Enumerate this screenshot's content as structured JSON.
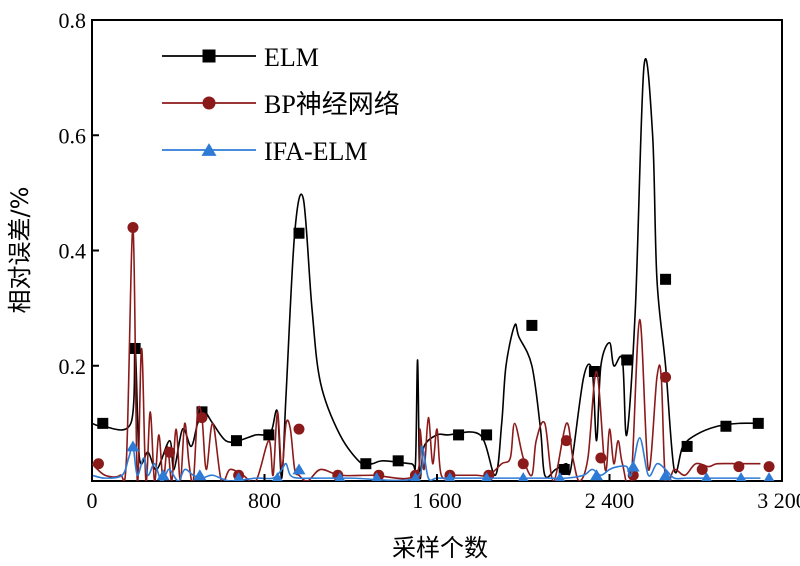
{
  "chart_data": {
    "type": "line",
    "xlabel": "采样个数",
    "ylabel": "相对误差/%",
    "xlim": [
      0,
      3200
    ],
    "ylim": [
      0,
      0.8
    ],
    "x_ticks": [
      0,
      800,
      1600,
      2400,
      3200
    ],
    "x_tick_labels": [
      "0",
      "800",
      "1 600",
      "2 400",
      "3 200"
    ],
    "y_ticks": [
      0.2,
      0.4,
      0.6,
      0.8
    ],
    "y_tick_labels": [
      "0.2",
      "0.4",
      "0.6",
      "0.8"
    ],
    "legend_position": "top-left",
    "series": [
      {
        "name": "ELM",
        "color": "#000000",
        "marker": "square",
        "x": [
          0,
          50,
          180,
          200,
          220,
          260,
          300,
          360,
          380,
          420,
          460,
          490,
          520,
          560,
          620,
          680,
          760,
          810,
          835,
          860,
          880,
          900,
          940,
          980,
          1020,
          1060,
          1150,
          1250,
          1300,
          1350,
          1480,
          1500,
          1510,
          1520,
          1540,
          1600,
          1650,
          1800,
          1870,
          1900,
          1920,
          1960,
          1980,
          2040,
          2080,
          2100,
          2150,
          2200,
          2220,
          2280,
          2320,
          2340,
          2360,
          2400,
          2420,
          2460,
          2480,
          2520,
          2560,
          2600,
          2620,
          2660,
          2700,
          2740,
          2800,
          2900,
          3000,
          3100
        ],
        "y": [
          0.1,
          0.095,
          0.1,
          0.23,
          0.04,
          0.05,
          0.02,
          0.07,
          0.02,
          0.09,
          0.06,
          0.1,
          0.12,
          0.1,
          0.07,
          0.07,
          0.08,
          0.08,
          0.09,
          0.12,
          0.005,
          0.15,
          0.43,
          0.49,
          0.3,
          0.17,
          0.08,
          0.03,
          0.03,
          0.035,
          0.03,
          0.03,
          0.21,
          0.01,
          0.06,
          0.08,
          0.08,
          0.08,
          0.01,
          0.1,
          0.2,
          0.27,
          0.25,
          0.2,
          0.09,
          0.01,
          0.02,
          0.03,
          0.02,
          0.18,
          0.19,
          0.07,
          0.2,
          0.24,
          0.2,
          0.21,
          0.08,
          0.3,
          0.72,
          0.6,
          0.35,
          0.2,
          0.02,
          0.06,
          0.08,
          0.095,
          0.1,
          0.1
        ],
        "markers_x": [
          50,
          200,
          510,
          670,
          820,
          960,
          1270,
          1420,
          1700,
          1830,
          2040,
          2190,
          2330,
          2480,
          2660,
          2760,
          2940,
          3090
        ],
        "markers_y": [
          0.1,
          0.23,
          0.12,
          0.07,
          0.08,
          0.43,
          0.03,
          0.035,
          0.08,
          0.08,
          0.27,
          0.02,
          0.19,
          0.21,
          0.35,
          0.06,
          0.095,
          0.1
        ]
      },
      {
        "name": "BP神经网络",
        "color": "#8b1a1a",
        "marker": "circle",
        "x": [
          0,
          60,
          130,
          160,
          190,
          210,
          230,
          250,
          270,
          290,
          310,
          330,
          350,
          370,
          390,
          410,
          430,
          450,
          470,
          490,
          510,
          530,
          560,
          600,
          640,
          700,
          760,
          820,
          840,
          860,
          880,
          900,
          920,
          940,
          960,
          1000,
          1060,
          1150,
          1300,
          1500,
          1520,
          1540,
          1560,
          1580,
          1600,
          1620,
          1680,
          1780,
          1840,
          1900,
          1940,
          1960,
          2000,
          2040,
          2060,
          2100,
          2140,
          2200,
          2230,
          2260,
          2300,
          2340,
          2380,
          2400,
          2420,
          2440,
          2460,
          2500,
          2540,
          2580,
          2620,
          2640,
          2660,
          2700,
          2750,
          2800,
          2860,
          2900,
          3000,
          3100
        ],
        "y": [
          0.03,
          0.01,
          0.01,
          0.04,
          0.44,
          0.0,
          0.23,
          0.0,
          0.12,
          0.0,
          0.08,
          0.0,
          0.06,
          0.0,
          0.09,
          0.0,
          0.1,
          0.03,
          0.0,
          0.12,
          0.11,
          0.02,
          0.1,
          0.0,
          0.02,
          0.01,
          0.0,
          0.07,
          0.01,
          0.12,
          0.02,
          0.1,
          0.09,
          0.02,
          0.01,
          0.0,
          0.02,
          0.01,
          0.01,
          0.01,
          0.09,
          0.02,
          0.11,
          0.03,
          0.09,
          0.01,
          0.01,
          0.01,
          0.01,
          0.03,
          0.04,
          0.1,
          0.04,
          0.01,
          0.07,
          0.1,
          0.0,
          0.1,
          0.04,
          0.0,
          0.04,
          0.19,
          0.02,
          0.09,
          0.03,
          0.07,
          0.03,
          0.0,
          0.28,
          0.02,
          0.18,
          0.18,
          0.0,
          0.02,
          0.01,
          0.03,
          0.025,
          0.03,
          0.03,
          0.03
        ],
        "markers_x": [
          30,
          190,
          360,
          510,
          680,
          960,
          1140,
          1330,
          1500,
          1660,
          1840,
          2000,
          2200,
          2360,
          2510,
          2660,
          2830,
          3000,
          3140
        ],
        "markers_y": [
          0.03,
          0.44,
          0.05,
          0.11,
          0.01,
          0.09,
          0.01,
          0.01,
          0.01,
          0.01,
          0.01,
          0.03,
          0.07,
          0.04,
          0.01,
          0.18,
          0.02,
          0.025,
          0.025
        ]
      },
      {
        "name": "IFA-ELM",
        "color": "#2e7bd6",
        "marker": "triangle",
        "x": [
          0,
          60,
          140,
          170,
          190,
          210,
          240,
          260,
          290,
          320,
          340,
          360,
          400,
          430,
          470,
          510,
          560,
          640,
          760,
          840,
          880,
          900,
          920,
          960,
          1060,
          1200,
          1500,
          1530,
          1560,
          1600,
          1700,
          1800,
          1900,
          2000,
          2100,
          2200,
          2280,
          2320,
          2360,
          2400,
          2440,
          2480,
          2500,
          2540,
          2580,
          2620,
          2660,
          2700,
          2760,
          2840,
          2900,
          3000,
          3100
        ],
        "y": [
          0.01,
          0.005,
          0.01,
          0.04,
          0.06,
          0.01,
          0.04,
          0.01,
          0.03,
          0.0,
          0.01,
          0.02,
          0.0,
          0.02,
          0.01,
          0.005,
          0.01,
          0.0,
          0.005,
          0.005,
          0.02,
          0.03,
          0.01,
          0.005,
          0.005,
          0.005,
          0.005,
          0.06,
          0.005,
          0.005,
          0.005,
          0.005,
          0.005,
          0.005,
          0.005,
          0.005,
          0.01,
          0.02,
          0.01,
          0.02,
          0.025,
          0.025,
          0.01,
          0.075,
          0.01,
          0.03,
          0.02,
          0.005,
          0.005,
          0.005,
          0.005,
          0.005,
          0.005
        ],
        "markers_x": [
          190,
          330,
          500,
          680,
          860,
          960,
          1150,
          1320,
          1500,
          1660,
          1830,
          2000,
          2170,
          2340,
          2510,
          2660,
          2850,
          3010,
          3140
        ],
        "markers_y": [
          0.06,
          0.01,
          0.01,
          0.005,
          0.005,
          0.02,
          0.005,
          0.005,
          0.005,
          0.005,
          0.005,
          0.005,
          0.005,
          0.01,
          0.025,
          0.01,
          0.005,
          0.005,
          0.005
        ]
      }
    ]
  }
}
